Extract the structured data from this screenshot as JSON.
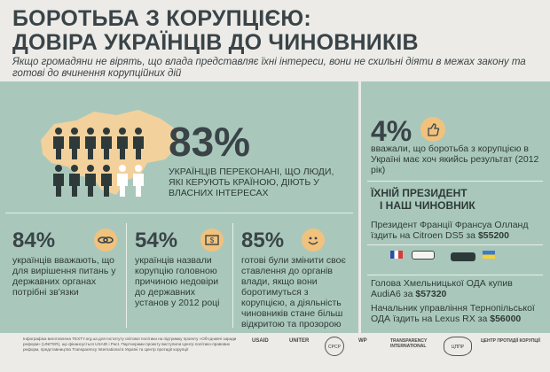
{
  "title": {
    "line1": "БОРОТЬБА З КОРУПЦІЄЮ:",
    "line2": "ДОВІРА УКРАЇНЦІВ ДО ЧИНОВНИКІВ"
  },
  "subtitle": "Якщо громадяни не вірять, що влада представляє їхні інтереси, вони не схильні діяти в межах закону та готові до вчинення корупційних дій",
  "main_stat": {
    "value": "83%",
    "text": "УКРАЇНЦІВ ПЕРЕКОНАНІ, ЩО ЛЮДИ, ЯКІ КЕРУЮТЬ КРАЇНОЮ, ДІЮТЬ У ВЛАСНИХ ІНТЕРЕСАХ"
  },
  "stats": [
    {
      "value": "84%",
      "text": "українців вважають, що для вирішення питань у державних органах потрібні зв'язки",
      "icon": "chain-icon"
    },
    {
      "value": "54%",
      "text": "українців назвали корупцію головною причиною недовіри до державних установ у 2012 році",
      "icon": "money-icon"
    },
    {
      "value": "85%",
      "text": "готові були змінити своє ставлення до органів влади, якщо вони боротимуться з корупцією, а діяльність чиновників стане більш відкритою та прозорою",
      "icon": "smile-icon"
    }
  ],
  "right_stat": {
    "value": "4%",
    "text": "вважали, що боротьба з корупцією в Україні має хоч якийсь результат (2012 рік)",
    "icon": "thumbs-up-icon"
  },
  "president_section": {
    "heading_line1": "ЇХНІЙ ПРЕЗИДЕНТ",
    "heading_line2": "І НАШ ЧИНОВНИК",
    "item1_text": "Президент Франції Франсуа Олланд їздить на Citroen DS5 за ",
    "item1_price": "$55200",
    "item2_text": "Голова Хмельницької ОДА купив AudiA6 за ",
    "item2_price": "$57320",
    "item3_text": "Начальник управління Тернопільської ОДА їздить на Lexus RX за ",
    "item3_price": "$56000"
  },
  "footer": {
    "text": "Інфографіка виготовлена TEXTY.org.ua для Інституту світової політики на підтримку проекту «Об'єднавчі заради реформ» (UNITER), що фінансується USAID і Pact. Партнерами проекту виступили Центр політико-правових реформ, представництво Transparency International в Україні та Центр протидії корупції",
    "logos": [
      "USAID",
      "UNITER",
      "CPCP",
      "WP",
      "TRANSPARENCY INTERNATIONAL",
      "ЦППР",
      "ЦЕНТР ПРОТИДІЇ КОРУПЦІЇ"
    ]
  },
  "colors": {
    "panel": "#a9c8bb",
    "accent": "#f1c27d",
    "dark": "#3a4448"
  }
}
